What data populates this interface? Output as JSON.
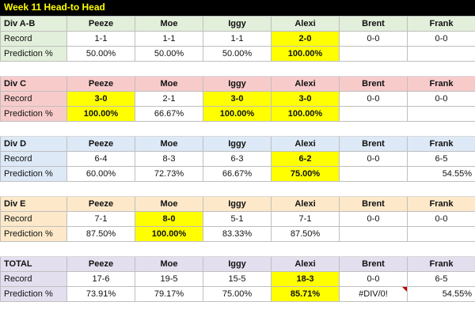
{
  "title": "Week 11 Head-to Head",
  "players": [
    "Peeze",
    "Moe",
    "Iggy",
    "Alexi",
    "Brent",
    "Frank"
  ],
  "row_labels": {
    "record": "Record",
    "prediction": "Prediction %"
  },
  "colors": {
    "title_bg": "#000000",
    "title_text": "#ffff00",
    "highlight": "#ffff00",
    "div_ab": "#e2efda",
    "div_c": "#f8cbcb",
    "div_d": "#dde9f7",
    "div_e": "#fde9c9",
    "total": "#e4dfef",
    "error_marker": "#c00000"
  },
  "sections": [
    {
      "id": "ab",
      "name": "Div A-B",
      "record": [
        "1-1",
        "1-1",
        "1-1",
        "2-0",
        "0-0",
        "0-0"
      ],
      "prediction": [
        "50.00%",
        "50.00%",
        "50.00%",
        "100.00%",
        "",
        ""
      ],
      "highlight": [
        false,
        false,
        false,
        true,
        false,
        false
      ]
    },
    {
      "id": "c",
      "name": "Div C",
      "record": [
        "3-0",
        "2-1",
        "3-0",
        "3-0",
        "0-0",
        "0-0"
      ],
      "prediction": [
        "100.00%",
        "66.67%",
        "100.00%",
        "100.00%",
        "",
        ""
      ],
      "highlight": [
        true,
        false,
        true,
        true,
        false,
        false
      ]
    },
    {
      "id": "d",
      "name": "Div D",
      "record": [
        "6-4",
        "8-3",
        "6-3",
        "6-2",
        "0-0",
        "6-5"
      ],
      "prediction": [
        "60.00%",
        "72.73%",
        "66.67%",
        "75.00%",
        "",
        "54.55%"
      ],
      "highlight": [
        false,
        false,
        false,
        true,
        false,
        false
      ]
    },
    {
      "id": "e",
      "name": "Div E",
      "record": [
        "7-1",
        "8-0",
        "5-1",
        "7-1",
        "0-0",
        "0-0"
      ],
      "prediction": [
        "87.50%",
        "100.00%",
        "83.33%",
        "87.50%",
        "",
        ""
      ],
      "highlight": [
        false,
        true,
        false,
        false,
        false,
        false
      ]
    },
    {
      "id": "t",
      "name": "TOTAL",
      "record": [
        "17-6",
        "19-5",
        "15-5",
        "18-3",
        "0-0",
        "6-5"
      ],
      "prediction": [
        "73.91%",
        "79.17%",
        "75.00%",
        "85.71%",
        "#DIV/0!",
        "54.55%"
      ],
      "highlight": [
        false,
        false,
        false,
        true,
        false,
        false
      ]
    }
  ]
}
